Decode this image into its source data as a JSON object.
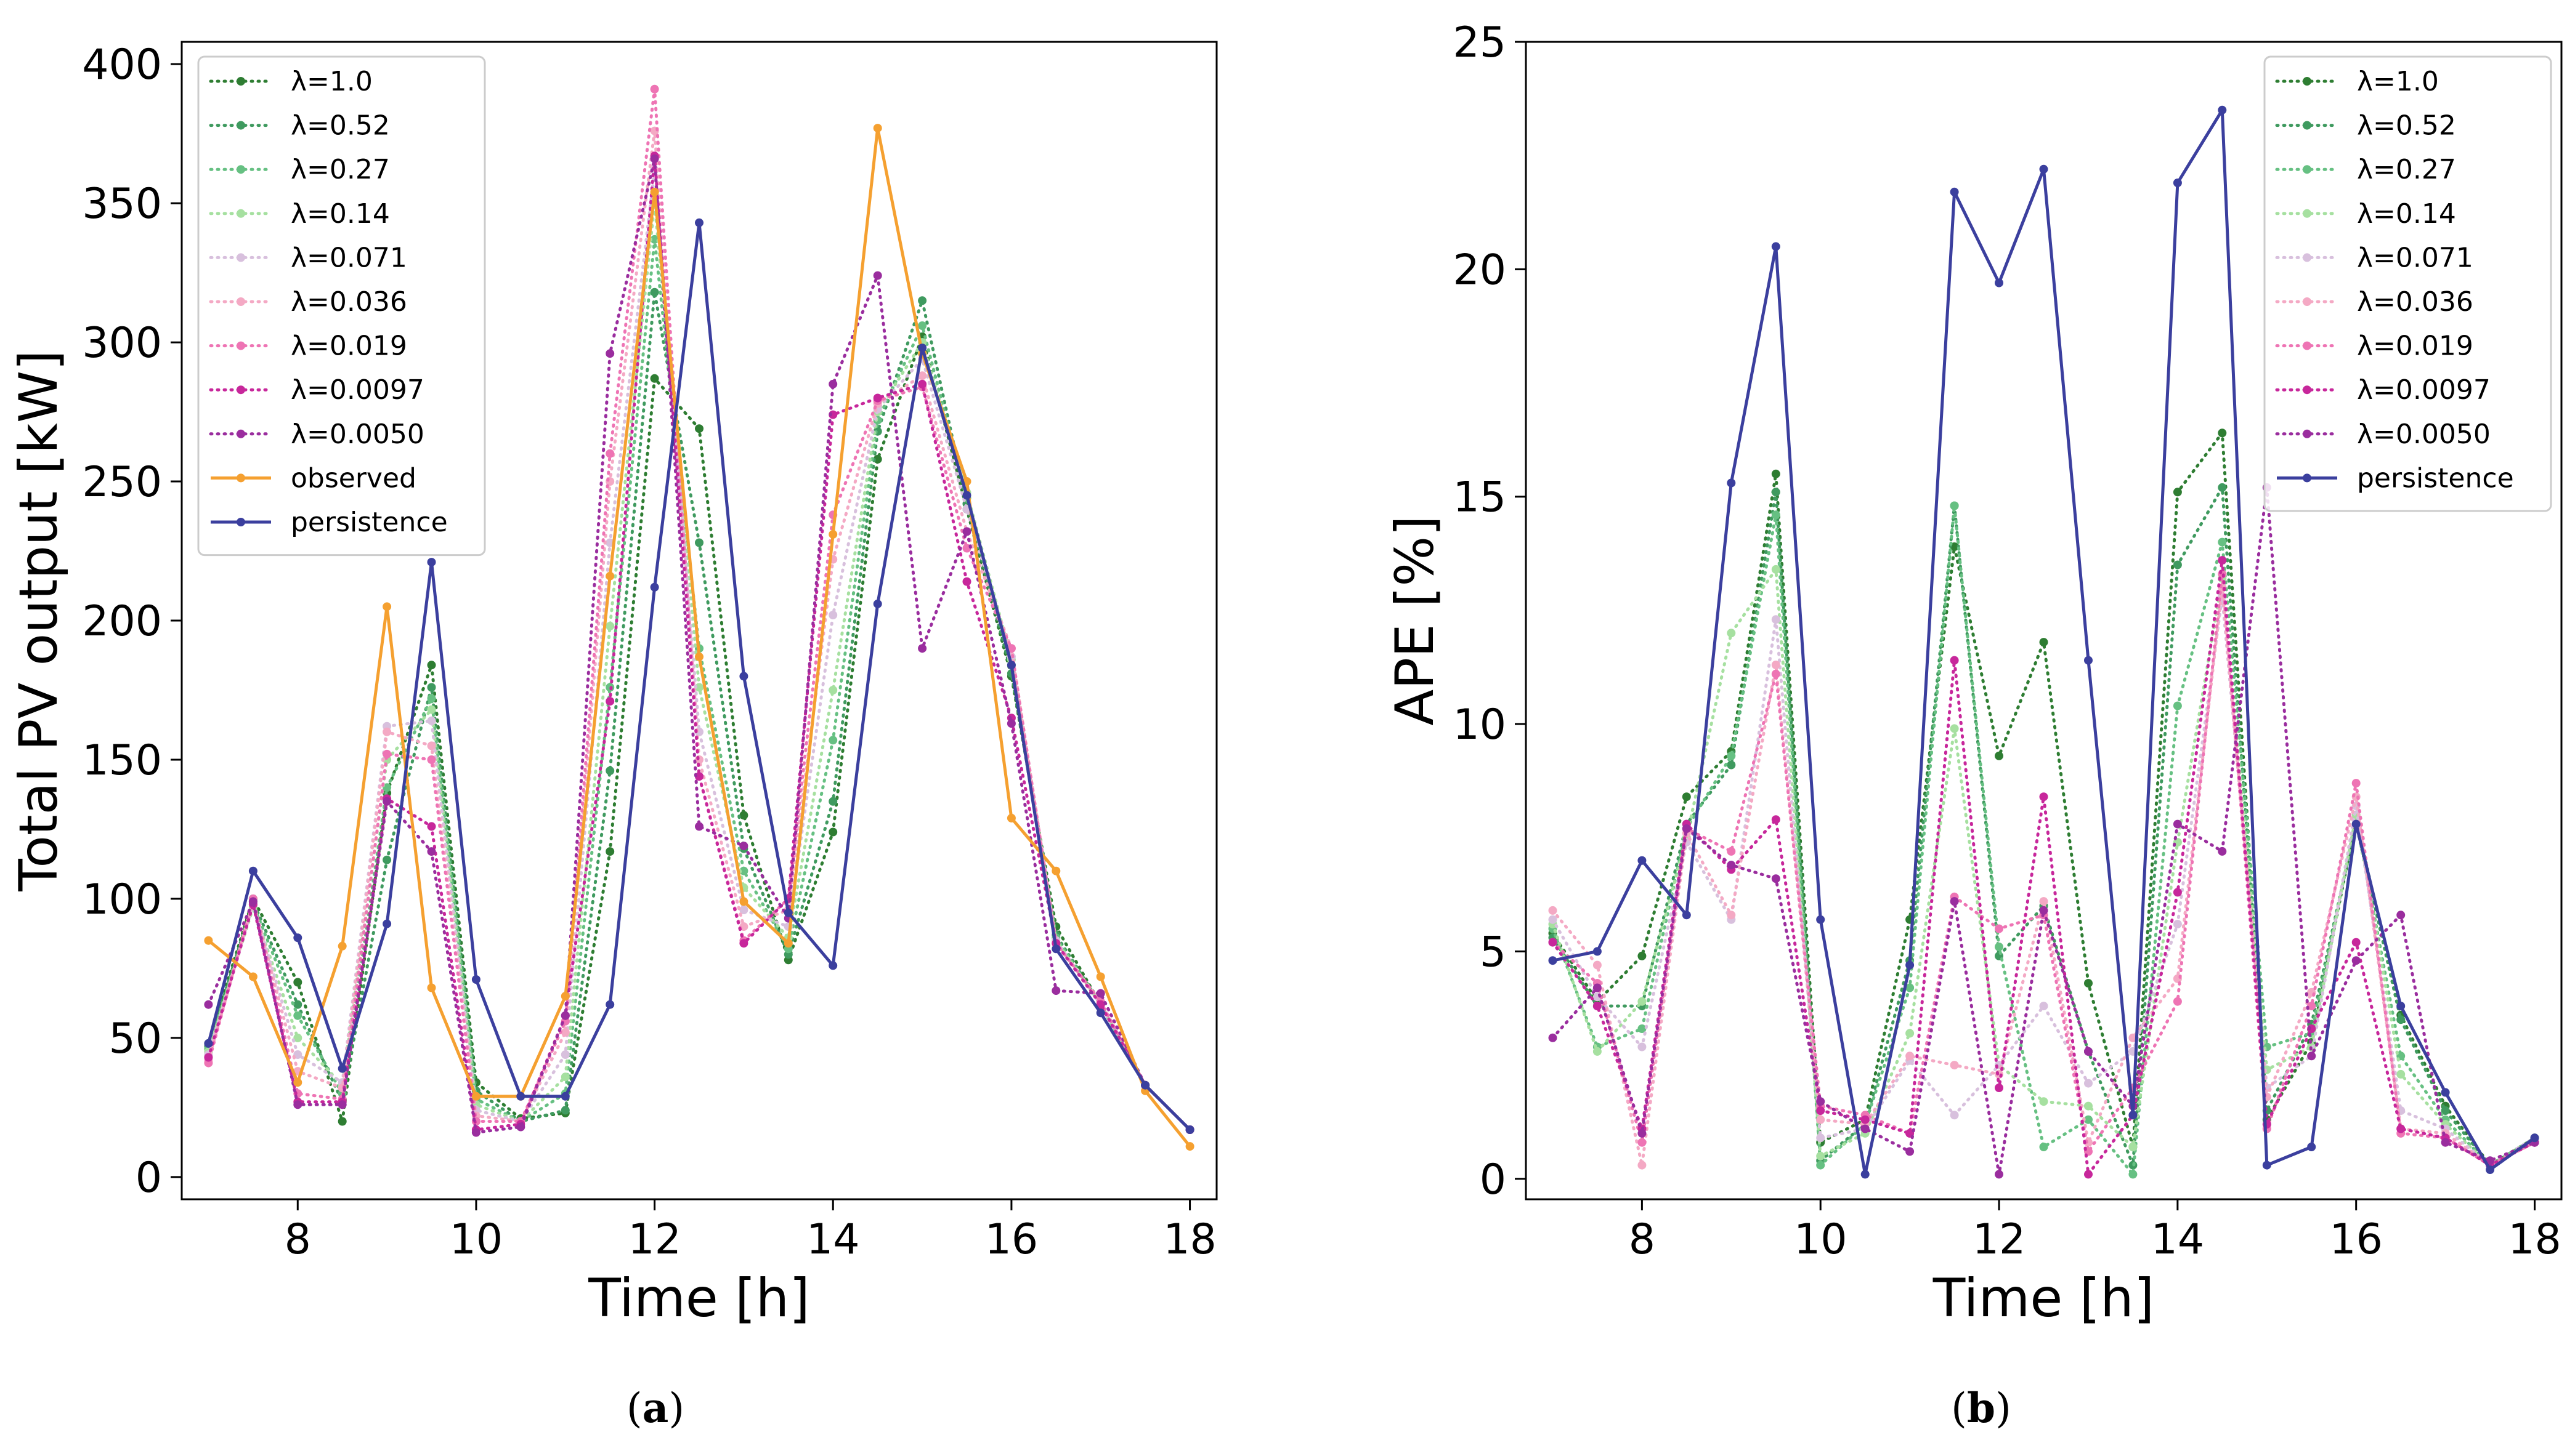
{
  "figure": {
    "caption_a_letter": "a",
    "caption_b_letter": "b",
    "caption_open": "(",
    "caption_close": ")"
  },
  "chart_data": [
    {
      "type": "line",
      "xlabel": "Time [h]",
      "ylabel": "Total PV output [kW]",
      "xlim": [
        6.7,
        18.3
      ],
      "ylim": [
        -8,
        408
      ],
      "xticks": [
        8,
        10,
        12,
        14,
        16,
        18
      ],
      "yticks": [
        0,
        50,
        100,
        150,
        200,
        250,
        300,
        350,
        400
      ],
      "legend_position": "top-left",
      "x": [
        7.0,
        7.5,
        8.0,
        8.5,
        9.0,
        9.5,
        10.0,
        10.5,
        11.0,
        11.5,
        12.0,
        12.5,
        13.0,
        13.5,
        14.0,
        14.5,
        15.0,
        15.5,
        16.0,
        16.5,
        17.0,
        17.5,
        18.0
      ],
      "series": [
        {
          "name": "λ=1.0",
          "color": "#2e7d32",
          "style": "dotted",
          "values": [
            48,
            100,
            70,
            20,
            138,
            184,
            34,
            21,
            23,
            117,
            287,
            269,
            130,
            78,
            124,
            258,
            302,
            240,
            180,
            90,
            62,
            33,
            17
          ]
        },
        {
          "name": "λ=0.52",
          "color": "#3f9a5f",
          "style": "dotted",
          "values": [
            47,
            99,
            62,
            27,
            114,
            176,
            31,
            20,
            24,
            146,
            318,
            228,
            118,
            80,
            135,
            268,
            315,
            242,
            181,
            87,
            62,
            33,
            17
          ]
        },
        {
          "name": "λ=0.27",
          "color": "#66c082",
          "style": "dotted",
          "values": [
            46,
            98,
            58,
            30,
            140,
            172,
            28,
            20,
            30,
            176,
            337,
            190,
            110,
            82,
            157,
            272,
            306,
            244,
            184,
            86,
            62,
            33,
            17
          ]
        },
        {
          "name": "λ=0.14",
          "color": "#a6e0a0",
          "style": "dotted",
          "values": [
            45,
            97,
            50,
            33,
            150,
            168,
            26,
            20,
            36,
            198,
            350,
            176,
            104,
            86,
            175,
            275,
            300,
            246,
            186,
            85,
            62,
            33,
            17
          ]
        },
        {
          "name": "λ=0.071",
          "color": "#d8c0dd",
          "style": "dotted",
          "values": [
            44,
            98,
            44,
            34,
            162,
            164,
            24,
            20,
            44,
            228,
            362,
            160,
            96,
            90,
            202,
            276,
            294,
            240,
            187,
            85,
            62,
            33,
            17
          ]
        },
        {
          "name": "λ=0.036",
          "color": "#f4a9c4",
          "style": "dotted",
          "values": [
            42,
            99,
            38,
            32,
            160,
            155,
            22,
            20,
            52,
            250,
            376,
            150,
            90,
            96,
            222,
            278,
            288,
            232,
            190,
            84,
            63,
            33,
            17
          ]
        },
        {
          "name": "λ=0.019",
          "color": "#ee74b4",
          "style": "dotted",
          "values": [
            41,
            100,
            30,
            28,
            152,
            150,
            20,
            20,
            56,
            260,
            391,
            144,
            85,
            100,
            238,
            279,
            284,
            226,
            190,
            84,
            63,
            33,
            17
          ]
        },
        {
          "name": "λ=0.0097",
          "color": "#c7279b",
          "style": "dotted",
          "values": [
            43,
            98,
            27,
            27,
            136,
            126,
            17,
            19,
            58,
            171,
            367,
            144,
            84,
            100,
            274,
            280,
            285,
            214,
            165,
            84,
            62,
            33,
            17
          ]
        },
        {
          "name": "λ=0.0050",
          "color": "#9a2d9e",
          "style": "dotted",
          "values": [
            62,
            99,
            26,
            26,
            135,
            117,
            16,
            18,
            58,
            296,
            366,
            126,
            119,
            93,
            285,
            324,
            190,
            232,
            163,
            67,
            66,
            33,
            17
          ]
        },
        {
          "name": "observed",
          "color": "#f5a030",
          "style": "solid",
          "values": [
            85,
            72,
            34,
            83,
            205,
            68,
            29,
            29,
            65,
            216,
            354,
            187,
            99,
            84,
            231,
            377,
            296,
            250,
            129,
            110,
            72,
            31,
            11
          ]
        },
        {
          "name": "persistence",
          "color": "#3b3f9e",
          "style": "solid",
          "values": [
            48,
            110,
            86,
            39,
            91,
            221,
            71,
            29,
            29,
            62,
            212,
            343,
            180,
            95,
            76,
            206,
            298,
            245,
            184,
            82,
            59,
            33,
            17
          ]
        }
      ]
    },
    {
      "type": "line",
      "xlabel": "Time [h]",
      "ylabel": "APE [%]",
      "xlim": [
        6.7,
        18.3
      ],
      "ylim": [
        -0.45,
        25
      ],
      "xticks": [
        8,
        10,
        12,
        14,
        16,
        18
      ],
      "yticks": [
        0,
        5,
        10,
        15,
        20,
        25
      ],
      "legend_position": "top-right",
      "x": [
        7.0,
        7.5,
        8.0,
        8.5,
        9.0,
        9.5,
        10.0,
        10.5,
        11.0,
        11.5,
        12.0,
        12.5,
        13.0,
        13.5,
        14.0,
        14.5,
        15.0,
        15.5,
        16.0,
        16.5,
        17.0,
        17.5,
        18.0
      ],
      "series": [
        {
          "name": "λ=1.0",
          "color": "#2e7d32",
          "style": "dotted",
          "values": [
            5.4,
            3.9,
            4.9,
            8.4,
            9.4,
            15.5,
            0.8,
            1.3,
            5.7,
            13.9,
            9.3,
            11.8,
            4.3,
            0.7,
            15.1,
            16.4,
            1.3,
            3.0,
            7.9,
            3.6,
            1.6,
            0.3,
            0.9
          ]
        },
        {
          "name": "λ=0.52",
          "color": "#3f9a5f",
          "style": "dotted",
          "values": [
            5.3,
            3.8,
            3.8,
            7.8,
            9.1,
            15.1,
            0.4,
            1.2,
            4.8,
            14.8,
            4.9,
            6.0,
            2.8,
            0.3,
            13.5,
            15.2,
            1.5,
            3.4,
            7.8,
            3.5,
            1.5,
            0.3,
            0.9
          ]
        },
        {
          "name": "λ=0.27",
          "color": "#66c082",
          "style": "dotted",
          "values": [
            5.5,
            2.9,
            3.3,
            7.7,
            9.3,
            14.6,
            0.3,
            1.2,
            4.2,
            14.8,
            5.1,
            0.7,
            1.3,
            0.1,
            10.4,
            14.0,
            2.9,
            3.2,
            7.9,
            2.7,
            1.3,
            0.3,
            0.9
          ]
        },
        {
          "name": "λ=0.14",
          "color": "#a6e0a0",
          "style": "dotted",
          "values": [
            5.6,
            2.8,
            3.9,
            7.5,
            12.0,
            13.4,
            0.5,
            1.0,
            3.2,
            9.9,
            2.5,
            1.7,
            1.6,
            0.7,
            7.4,
            13.2,
            2.4,
            2.9,
            8.0,
            2.3,
            1.2,
            0.3,
            0.9
          ]
        },
        {
          "name": "λ=0.071",
          "color": "#d8c0dd",
          "style": "dotted",
          "values": [
            5.7,
            4.0,
            2.9,
            7.4,
            5.7,
            12.3,
            0.9,
            1.1,
            2.6,
            1.4,
            2.5,
            3.8,
            2.1,
            2.8,
            5.6,
            12.8,
            2.0,
            2.7,
            8.2,
            1.5,
            1.1,
            0.3,
            0.9
          ]
        },
        {
          "name": "λ=0.036",
          "color": "#f4a9c4",
          "style": "dotted",
          "values": [
            5.9,
            4.7,
            0.3,
            7.6,
            5.8,
            11.3,
            1.3,
            1.2,
            2.7,
            2.5,
            2.3,
            6.1,
            0.8,
            3.1,
            4.4,
            13.0,
            1.8,
            4.1,
            8.4,
            1.1,
            1.0,
            0.3,
            0.8
          ]
        },
        {
          "name": "λ=0.019",
          "color": "#ee74b4",
          "style": "dotted",
          "values": [
            5.2,
            4.3,
            0.8,
            7.7,
            7.2,
            11.1,
            1.6,
            1.4,
            1.0,
            6.2,
            5.5,
            5.8,
            0.6,
            2.0,
            3.9,
            13.3,
            1.1,
            3.8,
            8.7,
            1.0,
            0.9,
            0.3,
            0.8
          ]
        },
        {
          "name": "λ=0.0097",
          "color": "#c7279b",
          "style": "dotted",
          "values": [
            5.2,
            3.8,
            1.1,
            7.8,
            6.8,
            7.9,
            1.5,
            1.3,
            1.0,
            11.4,
            2.0,
            8.4,
            0.1,
            1.4,
            6.3,
            13.6,
            1.2,
            3.3,
            5.2,
            1.1,
            0.9,
            0.3,
            0.8
          ]
        },
        {
          "name": "λ=0.0050",
          "color": "#9a2d9e",
          "style": "dotted",
          "values": [
            3.1,
            4.2,
            1.0,
            7.7,
            6.9,
            6.6,
            1.7,
            1.1,
            0.6,
            6.1,
            0.1,
            5.9,
            2.8,
            1.6,
            7.8,
            7.2,
            15.2,
            2.7,
            4.8,
            5.8,
            0.8,
            0.4,
            0.8
          ]
        },
        {
          "name": "persistence",
          "color": "#3b3f9e",
          "style": "solid",
          "values": [
            4.8,
            5.0,
            7.0,
            5.8,
            15.3,
            20.5,
            5.7,
            0.1,
            4.7,
            21.7,
            19.7,
            22.2,
            11.4,
            1.4,
            21.9,
            23.5,
            0.3,
            0.7,
            7.8,
            3.8,
            1.9,
            0.2,
            0.9
          ]
        }
      ]
    }
  ]
}
